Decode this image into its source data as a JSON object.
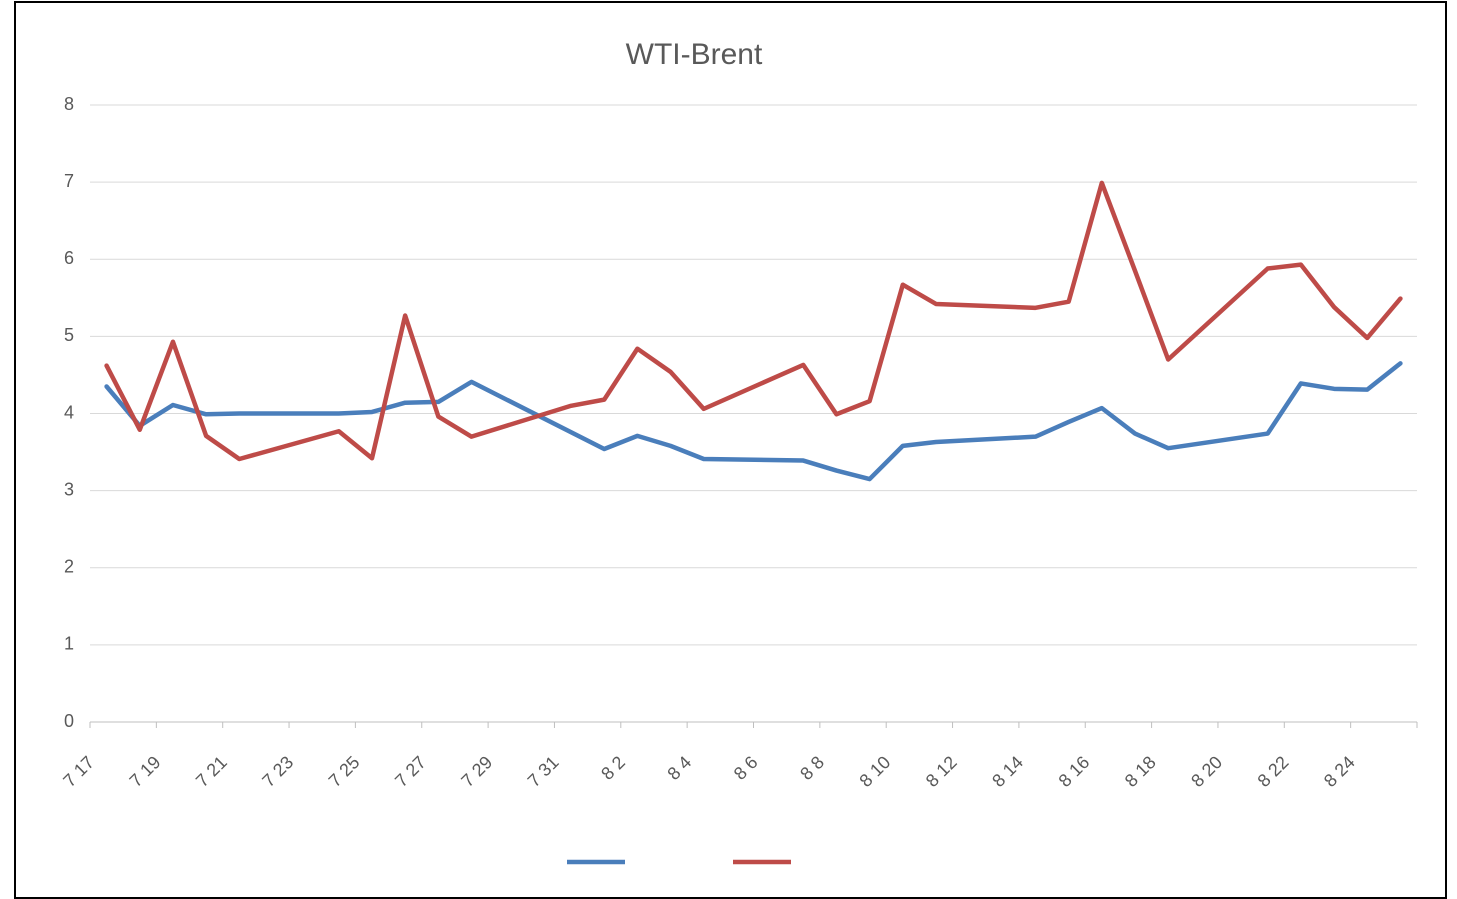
{
  "chart_data": {
    "type": "line",
    "title": "WTI-Brent",
    "categories": [
      "7 17",
      null,
      "7 19",
      null,
      "7 21",
      null,
      "7 23",
      null,
      "7 25",
      null,
      "7 27",
      null,
      "7 29",
      null,
      "7 31",
      null,
      "8 2",
      null,
      "8 4",
      null,
      "8 6",
      null,
      "8 8",
      null,
      "8 10",
      null,
      "8 12",
      null,
      "8 14",
      null,
      "8 16",
      null,
      "8 18",
      null,
      "8 20",
      null,
      "8 22",
      null,
      "8 24",
      null
    ],
    "series": [
      {
        "color": "#4a7ebb",
        "values": [
          4.35,
          3.84,
          4.11,
          3.99,
          4.0,
          null,
          null,
          4.0,
          4.02,
          4.14,
          4.15,
          4.41,
          null,
          null,
          null,
          3.54,
          3.71,
          3.58,
          3.41,
          null,
          null,
          3.39,
          3.26,
          3.15,
          3.58,
          3.63,
          null,
          null,
          3.7,
          3.89,
          4.07,
          3.74,
          3.55,
          null,
          null,
          3.74,
          4.39,
          4.32,
          4.31,
          4.65
        ]
      },
      {
        "color": "#be4b48",
        "values": [
          4.62,
          3.79,
          4.93,
          3.71,
          3.41,
          null,
          null,
          3.77,
          3.42,
          5.27,
          3.96,
          3.7,
          null,
          null,
          4.1,
          4.18,
          4.84,
          4.54,
          4.06,
          null,
          null,
          4.63,
          3.99,
          4.16,
          5.67,
          5.42,
          null,
          null,
          5.37,
          5.45,
          6.99,
          5.85,
          4.7,
          null,
          null,
          5.88,
          5.93,
          5.38,
          4.98,
          5.49
        ]
      }
    ],
    "ylim": [
      0,
      8
    ],
    "yticks": [
      0,
      1,
      2,
      3,
      4,
      5,
      6,
      7,
      8
    ],
    "grid": true
  }
}
